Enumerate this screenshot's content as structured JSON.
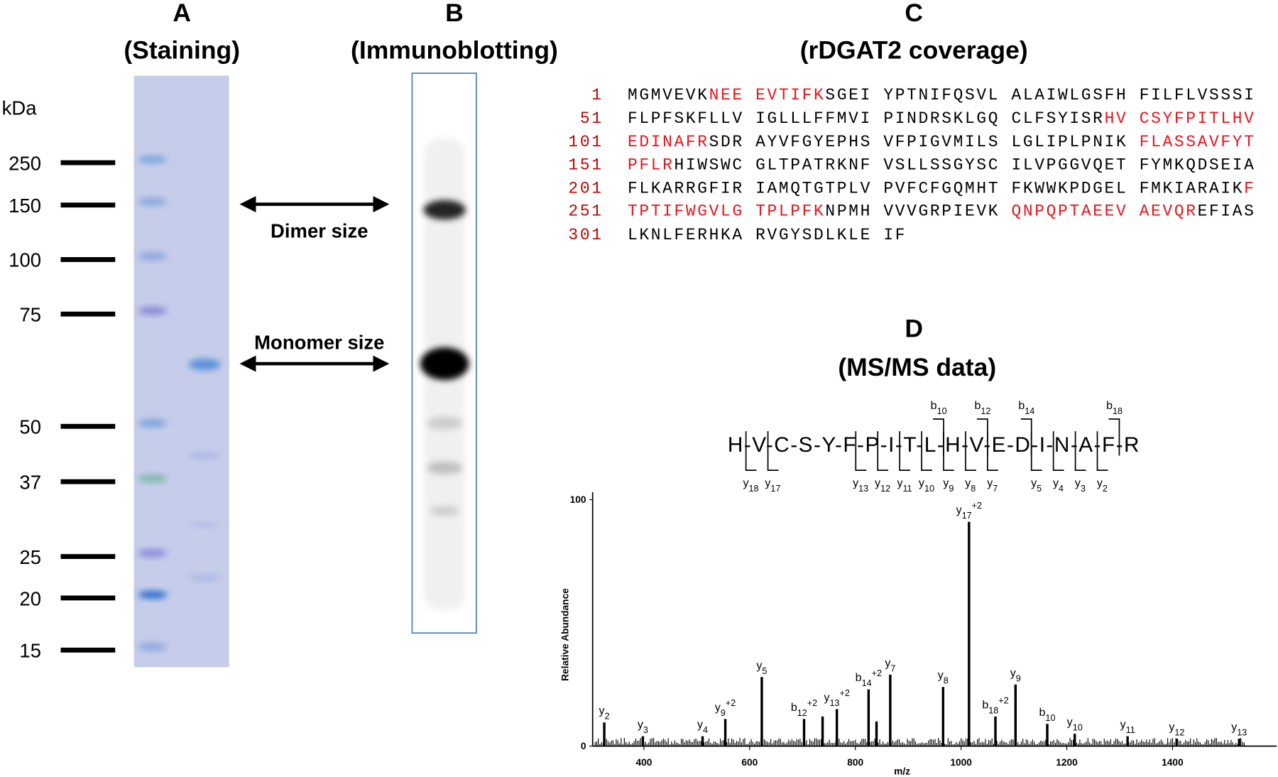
{
  "panel_a": {
    "letter": "A",
    "title": "(Staining)",
    "unit": "kDa",
    "markers": [
      250,
      150,
      100,
      75,
      50,
      37,
      25,
      20,
      15
    ]
  },
  "panel_b": {
    "letter": "B",
    "title": "(Immunoblotting)",
    "arrows": [
      "Dimer size",
      "Monomer size"
    ]
  },
  "panel_c": {
    "letter": "C",
    "title": "(rDGAT2 coverage)",
    "lines": [
      {
        "start": "1",
        "segments": [
          {
            "text": "MGMVEVK",
            "covered": false
          },
          {
            "text": "NEE EVTIFK",
            "covered": true
          },
          {
            "text": "SGEI YPTNIFQSVL ALAIWLGSFH FILFLVSSSI",
            "covered": false
          }
        ]
      },
      {
        "start": "51",
        "segments": [
          {
            "text": "FLPFSKFLLV IGLLLFFMVI PINDRSKLGQ CLFSYISR",
            "covered": false
          },
          {
            "text": "HV CSYFPITLHV",
            "covered": true
          }
        ]
      },
      {
        "start": "101",
        "segments": [
          {
            "text": "EDINAFR",
            "covered": true
          },
          {
            "text": "SDR AYVFGYEPHS VFPIGVMILS LGLIPLPNIK ",
            "covered": false
          },
          {
            "text": "FLASSAVFYT",
            "covered": true
          }
        ]
      },
      {
        "start": "151",
        "segments": [
          {
            "text": "PFLR",
            "covered": true
          },
          {
            "text": "HIWSWC GLTPATRKNF VSLLSSGYSC ILVPGGVQET FYMKQDSEIA",
            "covered": false
          }
        ]
      },
      {
        "start": "201",
        "segments": [
          {
            "text": "FLKARRGFIR IAMQTGTPLV PVFCFGQMHT FKWWKPDGEL FMKIARAIK",
            "covered": false
          },
          {
            "text": "F",
            "covered": true
          }
        ]
      },
      {
        "start": "251",
        "segments": [
          {
            "text": "TPTIFWGVLG TPLPFK",
            "covered": true
          },
          {
            "text": "NPMH VVVGRPIEVK ",
            "covered": false
          },
          {
            "text": "QNPQPTAEEV AEVQR",
            "covered": true
          },
          {
            "text": "EFIAS",
            "covered": false
          }
        ]
      },
      {
        "start": "301",
        "segments": [
          {
            "text": "LKNLFERHKA RVGYSDLKLE IF",
            "covered": false
          }
        ]
      }
    ]
  },
  "chart_data": {
    "type": "stem",
    "letter": "D",
    "title": "(MS/MS data)",
    "peptide": "H-V-C-S-Y-F-P-I-T-L-H-V-E-D-I-N-A-F-R",
    "b_ions": [
      {
        "ion": "b",
        "sub": "10"
      },
      {
        "ion": "b",
        "sub": "12"
      },
      {
        "ion": "b",
        "sub": "14"
      },
      {
        "ion": "b",
        "sub": "18"
      }
    ],
    "y_ions": [
      {
        "ion": "y",
        "sub": "18"
      },
      {
        "ion": "y",
        "sub": "17"
      },
      {
        "ion": "y",
        "sub": "13"
      },
      {
        "ion": "y",
        "sub": "12"
      },
      {
        "ion": "y",
        "sub": "11"
      },
      {
        "ion": "y",
        "sub": "10"
      },
      {
        "ion": "y",
        "sub": "9"
      },
      {
        "ion": "y",
        "sub": "8"
      },
      {
        "ion": "y",
        "sub": "7"
      },
      {
        "ion": "y",
        "sub": "5"
      },
      {
        "ion": "y",
        "sub": "4"
      },
      {
        "ion": "y",
        "sub": "3"
      },
      {
        "ion": "y",
        "sub": "2"
      }
    ],
    "x_label": "m/z",
    "y_label": "Relative Abundance",
    "x": [
      325,
      398,
      511,
      554,
      623,
      703,
      738,
      765,
      825,
      840,
      866,
      966,
      1015,
      1065,
      1103,
      1163,
      1215,
      1315,
      1408,
      1526
    ],
    "values": [
      9.6,
      4,
      4,
      11,
      28,
      11,
      12,
      15,
      23,
      10,
      29,
      24,
      91,
      12,
      25,
      9,
      5,
      4,
      3,
      3
    ],
    "labels": [
      {
        "ion": "y",
        "sub": "2"
      },
      {
        "ion": "y",
        "sub": "3"
      },
      {
        "ion": "y",
        "sub": "4"
      },
      {
        "ion": "y",
        "sub": "9",
        "sup": "+2"
      },
      {
        "ion": "y",
        "sub": "5"
      },
      {
        "ion": "b",
        "sub": "12",
        "sup": "+2"
      },
      null,
      {
        "ion": "y",
        "sub": "13",
        "sup": "+2"
      },
      {
        "ion": "b",
        "sub": "14",
        "sup": "+2"
      },
      null,
      {
        "ion": "y",
        "sub": "7"
      },
      {
        "ion": "y",
        "sub": "8"
      },
      {
        "ion": "y",
        "sub": "17",
        "sup": "+2"
      },
      {
        "ion": "b",
        "sub": "18",
        "sup": "+2"
      },
      {
        "ion": "y",
        "sub": "9"
      },
      {
        "ion": "b",
        "sub": "10"
      },
      {
        "ion": "y",
        "sub": "10"
      },
      {
        "ion": "y",
        "sub": "11"
      },
      {
        "ion": "y",
        "sub": "12"
      },
      {
        "ion": "y",
        "sub": "13"
      }
    ],
    "color": "#000000",
    "xlim": [
      303,
      1597
    ],
    "ylim": [
      0,
      103
    ],
    "xticks": [
      400,
      600,
      800,
      1000,
      1200,
      1400
    ],
    "yticks": [
      0,
      100
    ]
  }
}
